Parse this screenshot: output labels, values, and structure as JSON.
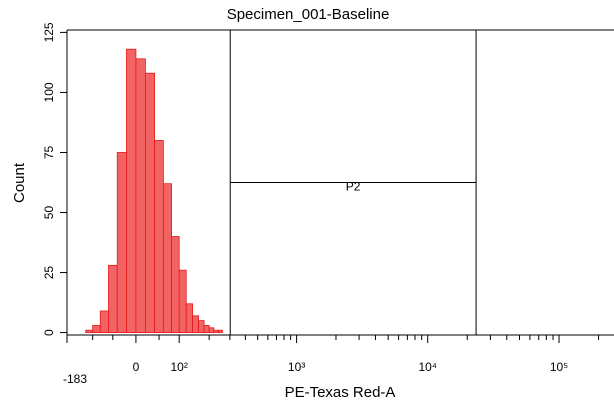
{
  "chart_data": {
    "type": "histogram",
    "title": "Specimen_001-Baseline",
    "xlabel": "PE-Texas Red-A",
    "ylabel": "Count",
    "xscale": "biexponential",
    "bins": [
      -120,
      -100,
      -80,
      -60,
      -40,
      -20,
      0,
      20,
      40,
      60,
      80,
      100,
      120,
      140,
      160,
      180,
      200,
      220,
      240,
      260,
      280
    ],
    "counts": [
      1,
      3,
      9,
      28,
      75,
      118,
      114,
      108,
      80,
      62,
      40,
      26,
      12,
      7,
      5,
      3,
      2,
      1,
      1,
      0
    ],
    "color": "#f26464",
    "edge_color": "#e81818",
    "xlim": [
      -183,
      262144
    ],
    "xticks": [
      {
        "value": -183,
        "label": "-183"
      },
      0,
      {
        "value": 100,
        "label": "10²"
      },
      {
        "value": 1000,
        "label": "10³"
      },
      {
        "value": 10000,
        "label": "10⁴"
      },
      {
        "value": 100000,
        "label": "10⁵"
      }
    ],
    "xminorticks": [
      -100,
      -50,
      50,
      200,
      300,
      400,
      500,
      600,
      700,
      800,
      900,
      2000,
      3000,
      4000,
      5000,
      6000,
      7000,
      8000,
      9000,
      20000,
      30000,
      40000,
      50000,
      60000,
      70000,
      80000,
      90000,
      200000
    ],
    "ylim": [
      -1,
      126
    ],
    "yticks": [
      0,
      25,
      50,
      75,
      100,
      125
    ],
    "gate": {
      "label": "P2",
      "range": [
        302,
        23350
      ]
    }
  }
}
